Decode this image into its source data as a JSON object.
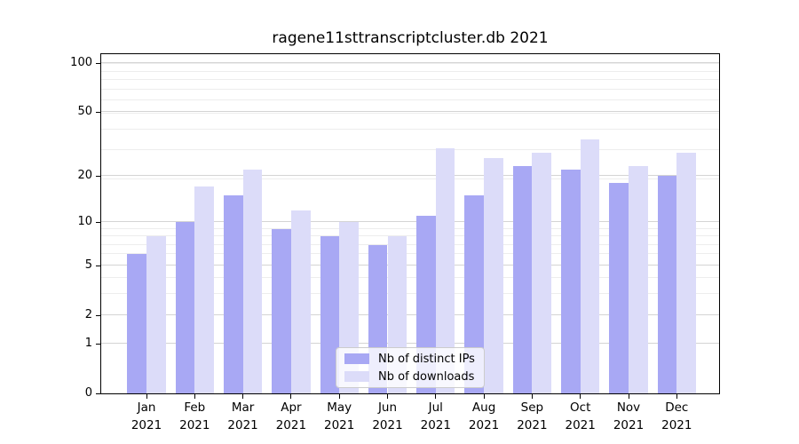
{
  "chart_data": {
    "type": "bar",
    "title": "ragene11sttranscriptcluster.db 2021",
    "categories": [
      "Jan",
      "Feb",
      "Mar",
      "Apr",
      "May",
      "Jun",
      "Jul",
      "Aug",
      "Sep",
      "Oct",
      "Nov",
      "Dec"
    ],
    "year": "2021",
    "series": [
      {
        "name": "Nb of distinct IPs",
        "color": "#a8a8f4",
        "values": [
          6,
          10,
          15,
          9,
          8,
          7,
          11,
          15,
          23,
          22,
          18,
          20
        ]
      },
      {
        "name": "Nb of downloads",
        "color": "#dcdcf9",
        "values": [
          8,
          17,
          22,
          12,
          10,
          8,
          30,
          26,
          28,
          34,
          23,
          28
        ]
      }
    ],
    "xlabel": "",
    "ylabel": "",
    "yscale": "log1p",
    "ylim": [
      0,
      114
    ],
    "yticks": [
      0,
      1,
      2,
      5,
      10,
      20,
      50,
      100
    ],
    "minor_gridlines": [
      3,
      4,
      6,
      7,
      8,
      9,
      19,
      29,
      39,
      49,
      59,
      69,
      79,
      89,
      99
    ],
    "grid": "on",
    "legend_position": "lower-center-inside",
    "colors": {
      "axis": "#000000",
      "major_grid": "#d4d4d4",
      "minor_grid": "#ededed",
      "background": "#ffffff"
    }
  }
}
